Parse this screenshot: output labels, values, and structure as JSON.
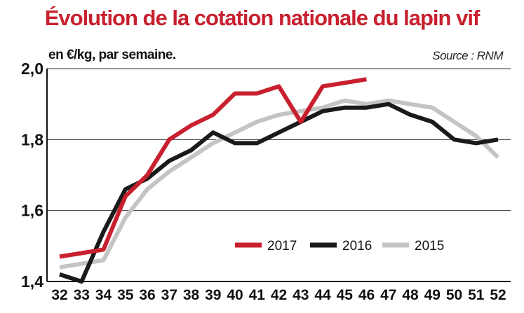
{
  "chart_data": {
    "type": "line",
    "title": "Évolution de la cotation nationale du lapin vif",
    "subtitle": "en €/kg, par semaine.",
    "source": "Source : RNM",
    "x": [
      32,
      33,
      34,
      35,
      36,
      37,
      38,
      39,
      40,
      41,
      42,
      43,
      44,
      45,
      46,
      47,
      48,
      49,
      50,
      51,
      52
    ],
    "ylim": [
      1.4,
      2.0
    ],
    "yticks": [
      {
        "value": 1.4,
        "label": "1,4"
      },
      {
        "value": 1.6,
        "label": "1,6"
      },
      {
        "value": 1.8,
        "label": "1,8"
      },
      {
        "value": 2.0,
        "label": "2,0"
      }
    ],
    "grid": "horizontal",
    "legend_position": "bottom-center",
    "series": [
      {
        "name": "2017",
        "color": "#c8202f",
        "values": [
          1.47,
          1.48,
          1.49,
          1.64,
          1.7,
          1.8,
          1.84,
          1.87,
          1.93,
          1.93,
          1.95,
          1.85,
          1.95,
          1.96,
          1.97,
          null,
          null,
          null,
          null,
          null,
          null
        ]
      },
      {
        "name": "2016",
        "color": "#1a1a1a",
        "values": [
          1.42,
          1.4,
          1.54,
          1.66,
          1.69,
          1.74,
          1.77,
          1.82,
          1.79,
          1.79,
          1.82,
          1.85,
          1.88,
          1.89,
          1.89,
          1.9,
          1.87,
          1.85,
          1.8,
          1.79,
          1.8
        ]
      },
      {
        "name": "2015",
        "color": "#c4c4c4",
        "values": [
          1.44,
          1.45,
          1.46,
          1.58,
          1.66,
          1.71,
          1.75,
          1.79,
          1.82,
          1.85,
          1.87,
          1.88,
          1.89,
          1.91,
          1.9,
          1.91,
          1.9,
          1.89,
          1.85,
          1.81,
          1.75
        ]
      }
    ]
  }
}
